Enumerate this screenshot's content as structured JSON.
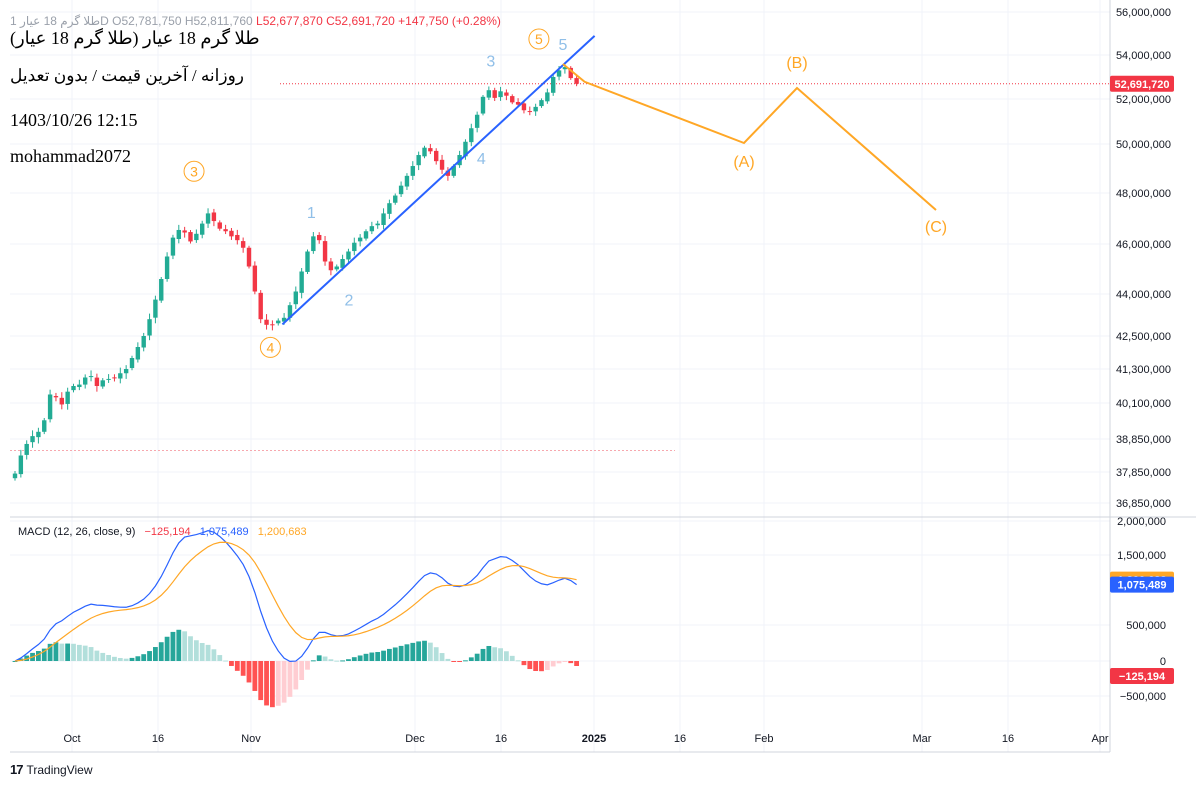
{
  "header": {
    "ohlc_faded": "طلا گرم 18 عیار 1D  O52,781,750  H52,811,760",
    "low": "L52,677,870",
    "close": "C52,691,720",
    "change": "+147,750 (+0.28%)"
  },
  "overlay": {
    "title": "طلا گرم 18 عیار (طلا گرم 18 عیار)",
    "subtitle": "روزانه / آخرین قیمت / بدون تعدیل",
    "datetime": "1403/10/26 12:15",
    "author": "mohammad2072"
  },
  "macd_legend": {
    "label": "MACD (12, 26, close, 9)",
    "hist": "−125,194",
    "macd": "1,075,489",
    "signal": "1,200,683"
  },
  "branding": {
    "logo_mark": "17",
    "name": "TradingView"
  },
  "colors": {
    "up": "#22ab94",
    "down": "#f23645",
    "trendline": "#2962ff",
    "wave_orange": "#ffa726",
    "wave_blue": "#90bfe8",
    "macd": "#2962ff",
    "signal": "#ffa726"
  },
  "chart_data": [
    {
      "type": "candlestick",
      "title": "طلا گرم 18 عیار (طلا گرم 18 عیار)",
      "interval": "1D",
      "y_ticks": [
        56000000,
        54000000,
        52000000,
        50000000,
        48000000,
        46000000,
        44000000,
        42500000,
        41300000,
        40100000,
        38850000,
        37850000,
        36850000
      ],
      "y_tick_labels": [
        "56,000,000",
        "54,000,000",
        "52,000,000",
        "50,000,000",
        "48,000,000",
        "46,000,000",
        "44,000,000",
        "42,500,000",
        "41,300,000",
        "40,100,000",
        "38,850,000",
        "37,850,000",
        "36,850,000"
      ],
      "x_ticks": [
        "Oct",
        "16",
        "Nov",
        "Dec",
        "16",
        "2025",
        "16",
        "Feb",
        "Mar",
        "16",
        "Apr"
      ],
      "last_price_label": "52,691,720",
      "prices": [
        37800000,
        38350000,
        38700000,
        38950000,
        39100000,
        39500000,
        40400000,
        40300000,
        40050000,
        40500000,
        40700000,
        40750000,
        41000000,
        41050000,
        40700000,
        40900000,
        40950000,
        41000000,
        41150000,
        41300000,
        41700000,
        42100000,
        42500000,
        43100000,
        43800000,
        44600000,
        45500000,
        46250000,
        46550000,
        46450000,
        46100000,
        46400000,
        46800000,
        47200000,
        46900000,
        46600000,
        46500000,
        46300000,
        46150000,
        45850000,
        45100000,
        44100000,
        43100000,
        42900000,
        42900000,
        43050000,
        43150000,
        43600000,
        44100000,
        44900000,
        45700000,
        46300000,
        46150000,
        45300000,
        44950000,
        45100000,
        45400000,
        45700000,
        46050000,
        46250000,
        46500000,
        46700000,
        46800000,
        47200000,
        47600000,
        47900000,
        48300000,
        48700000,
        49100000,
        49550000,
        49850000,
        49700000,
        49300000,
        48950000,
        48700000,
        49100000,
        49550000,
        50100000,
        50700000,
        51300000,
        52100000,
        52400000,
        52050000,
        52350000,
        52150000,
        51850000,
        51750000,
        51500000,
        51450000,
        51650000,
        51950000,
        52300000,
        53000000,
        53300000,
        53450000,
        52950000,
        52691720
      ]
    },
    {
      "type": "line",
      "title": "MACD (12, 26, close, 9)",
      "y_ticks": [
        2000000,
        1500000,
        500000,
        0,
        -500000
      ],
      "y_tick_labels": [
        "2,000,000",
        "1,500,000",
        "500,000",
        "0",
        "−500,000"
      ],
      "series_labels": {
        "macd": "1,075,489",
        "signal": "1,200,683",
        "histogram": "−125,194"
      }
    }
  ],
  "annotations": {
    "wave_labels": [
      {
        "text": "3",
        "style": "orange-circle"
      },
      {
        "text": "4",
        "style": "orange-circle"
      },
      {
        "text": "5",
        "style": "orange-circle"
      },
      {
        "text": "1",
        "style": "blue"
      },
      {
        "text": "2",
        "style": "blue"
      },
      {
        "text": "3",
        "style": "blue"
      },
      {
        "text": "4",
        "style": "blue"
      },
      {
        "text": "5",
        "style": "blue"
      },
      {
        "text": "(A)",
        "style": "orange"
      },
      {
        "text": "(B)",
        "style": "orange"
      },
      {
        "text": "(C)",
        "style": "orange"
      }
    ]
  }
}
